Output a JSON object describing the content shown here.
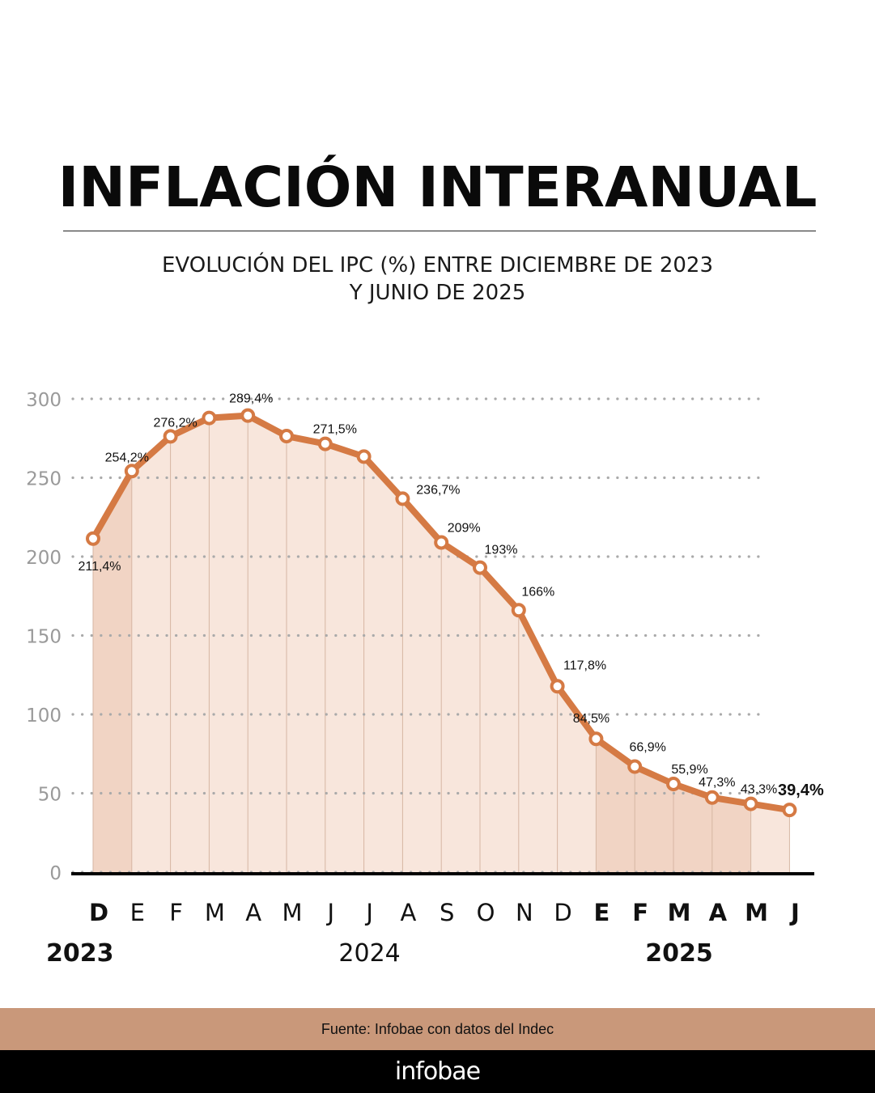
{
  "header": {
    "title": "INFLACIÓN INTERANUAL",
    "subtitle_line1": "EVOLUCIÓN DEL IPC (%) ENTRE DICIEMBRE DE 2023",
    "subtitle_line2": "Y JUNIO DE 2025"
  },
  "footer": {
    "source": "Fuente: Infobae con datos del Indec",
    "brand": "infobae"
  },
  "colors": {
    "line": "#d57a44",
    "fill": "#f8e6dc",
    "fill_highlight": "#f1d4c4",
    "grid": "#aaaaaa",
    "axis": "#000000",
    "source_bar": "#c9987a"
  },
  "chart_data": {
    "type": "line",
    "categories": [
      "D",
      "E",
      "F",
      "M",
      "A",
      "M",
      "J",
      "J",
      "A",
      "S",
      "O",
      "N",
      "D",
      "E",
      "F",
      "M",
      "A",
      "M",
      "J"
    ],
    "months": [
      "2023-12",
      "2024-01",
      "2024-02",
      "2024-03",
      "2024-04",
      "2024-05",
      "2024-06",
      "2024-07",
      "2024-08",
      "2024-09",
      "2024-10",
      "2024-11",
      "2024-12",
      "2025-01",
      "2025-02",
      "2025-03",
      "2025-04",
      "2025-05",
      "2025-06"
    ],
    "bold_categories": [
      0,
      13,
      14,
      15,
      16,
      17,
      18
    ],
    "highlighted_columns": [
      0,
      13,
      14,
      15,
      16
    ],
    "years": [
      {
        "label": "2023",
        "bold": true,
        "anchor": 0
      },
      {
        "label": "2024",
        "bold": false,
        "anchor": 7
      },
      {
        "label": "2025",
        "bold": true,
        "anchor": 15
      }
    ],
    "values": [
      211.4,
      254.2,
      276.2,
      287.9,
      289.4,
      276.4,
      271.5,
      263.4,
      236.7,
      209.0,
      193.0,
      166.0,
      117.8,
      84.5,
      66.9,
      55.9,
      47.3,
      43.3,
      39.4
    ],
    "data_labels": [
      "211,4%",
      "254,2%",
      "276,2%",
      "",
      "289,4%",
      "",
      "271,5%",
      "",
      "236,7%",
      "209%",
      "193%",
      "166%",
      "117,8%",
      "84,5%",
      "66,9%",
      "55,9%",
      "47,3%",
      "43,3%",
      "39,4%"
    ],
    "y_ticks": [
      0,
      50,
      100,
      150,
      200,
      250,
      300
    ],
    "ylim": [
      0,
      300
    ],
    "grid": true
  }
}
